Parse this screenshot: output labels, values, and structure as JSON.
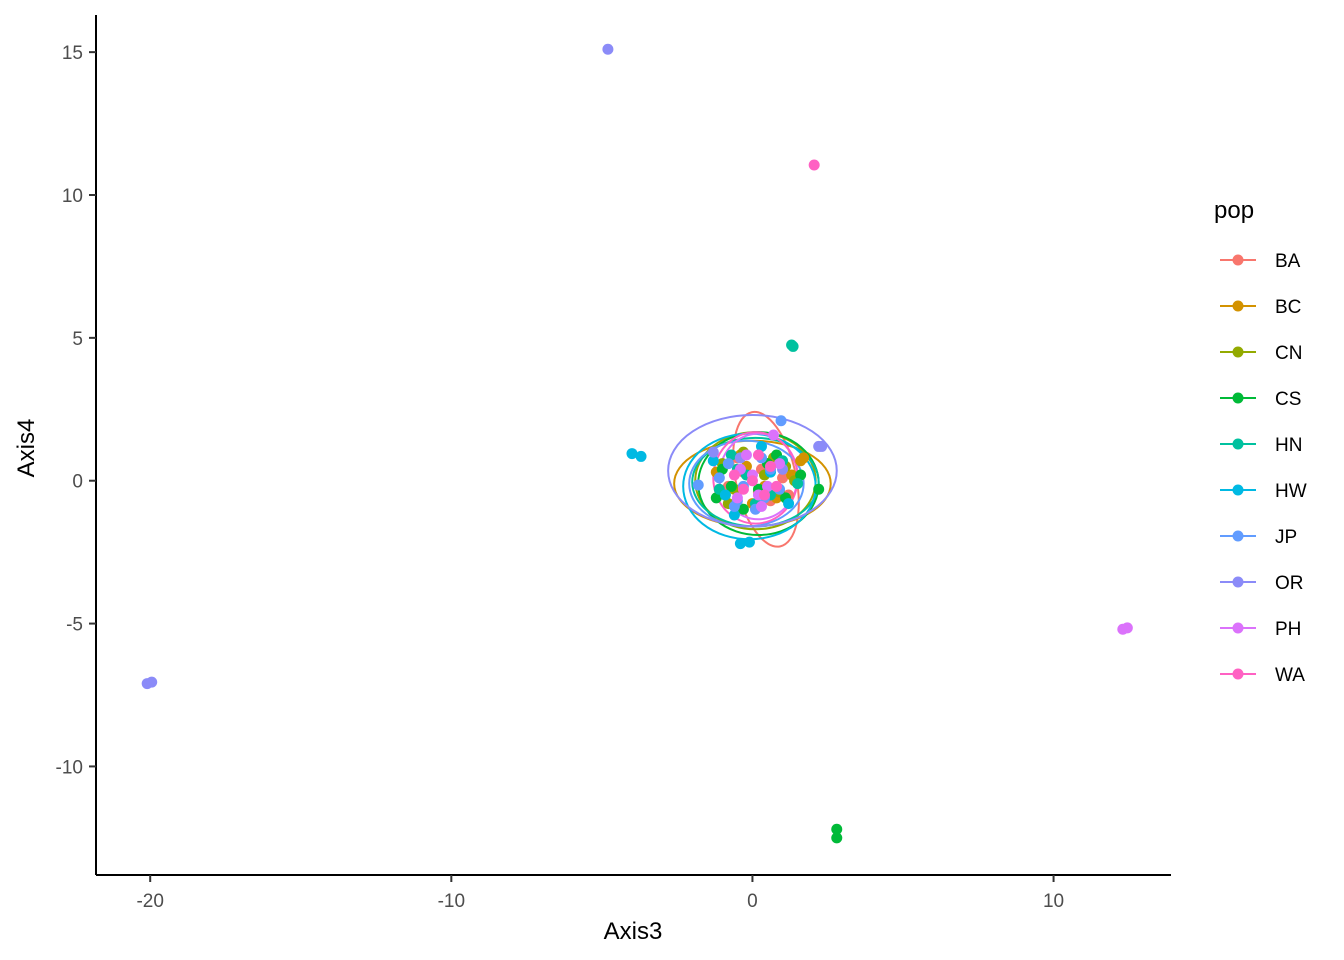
{
  "chart_data": {
    "type": "scatter",
    "title": "",
    "xlabel": "Axis3",
    "ylabel": "Axis4",
    "xlim": [
      -21.8,
      13.9
    ],
    "ylim": [
      -13.8,
      16.3
    ],
    "x_ticks": [
      -20,
      -10,
      0,
      10
    ],
    "y_ticks": [
      -10,
      -5,
      0,
      5,
      10,
      15
    ],
    "x_tick_labels": [
      "-20",
      "-10",
      "0",
      "10"
    ],
    "y_tick_labels": [
      "-10",
      "-5",
      "0",
      "5",
      "10",
      "15"
    ],
    "grid": false,
    "legend": {
      "title": "pop",
      "position": "right"
    },
    "ellipses_shown": true,
    "series": [
      {
        "name": "BA",
        "color": "#F8766D",
        "points": [
          [
            -0.3,
            0.3
          ],
          [
            0.2,
            -0.4
          ],
          [
            0.5,
            0.6
          ],
          [
            -0.8,
            -0.2
          ],
          [
            1.0,
            0.1
          ],
          [
            0.1,
            -0.9
          ],
          [
            -0.5,
            0.8
          ],
          [
            0.6,
            -0.7
          ],
          [
            1.2,
            -0.5
          ],
          [
            0.3,
            0.4
          ]
        ],
        "ellipse": {
          "center": [
            0.45,
            0.05
          ],
          "rx": 1.0,
          "ry": 2.4,
          "rotate": -12
        }
      },
      {
        "name": "BC",
        "color": "#D39200",
        "points": [
          [
            1.7,
            0.8
          ],
          [
            -1.2,
            0.3
          ],
          [
            0.8,
            -0.6
          ],
          [
            -0.4,
            0.9
          ],
          [
            1.3,
            0.2
          ],
          [
            -0.9,
            -0.5
          ],
          [
            0.4,
            -0.2
          ],
          [
            -0.2,
            0.5
          ],
          [
            1.6,
            0.7
          ],
          [
            0.0,
            -0.8
          ]
        ],
        "ellipse": {
          "center": [
            0.0,
            -0.1
          ],
          "rx": 2.6,
          "ry": 1.5,
          "rotate": 0
        }
      },
      {
        "name": "CN",
        "color": "#93AA00",
        "points": [
          [
            0.4,
            0.2
          ],
          [
            -0.6,
            -0.3
          ],
          [
            1.1,
            0.5
          ],
          [
            -1.0,
            0.6
          ],
          [
            0.2,
            -0.9
          ],
          [
            0.9,
            -0.4
          ],
          [
            -0.3,
            1.0
          ],
          [
            0.7,
            0.8
          ],
          [
            -0.8,
            -0.8
          ],
          [
            1.4,
            0.0
          ]
        ],
        "ellipse": {
          "center": [
            0.1,
            0.0
          ],
          "rx": 2.0,
          "ry": 1.7,
          "rotate": 0
        }
      },
      {
        "name": "CS",
        "color": "#00BA38",
        "points": [
          [
            2.8,
            -12.2
          ],
          [
            2.8,
            -12.5
          ],
          [
            -0.7,
            -0.2
          ],
          [
            0.5,
            0.6
          ],
          [
            1.1,
            -0.6
          ],
          [
            -1.0,
            0.4
          ],
          [
            0.2,
            -0.3
          ],
          [
            1.6,
            0.2
          ],
          [
            -0.3,
            -1.0
          ],
          [
            0.8,
            0.9
          ],
          [
            2.2,
            -0.3
          ],
          [
            -1.2,
            -0.6
          ]
        ],
        "ellipse": {
          "center": [
            0.2,
            -0.1
          ],
          "rx": 2.0,
          "ry": 1.8,
          "rotate": 0
        }
      },
      {
        "name": "HN",
        "color": "#00C19F",
        "points": [
          [
            1.3,
            4.75
          ],
          [
            1.35,
            4.7
          ],
          [
            -0.5,
            0.4
          ],
          [
            0.6,
            -0.5
          ],
          [
            -1.1,
            -0.3
          ],
          [
            1.0,
            0.7
          ],
          [
            0.1,
            -0.8
          ],
          [
            -0.7,
            0.9
          ],
          [
            1.5,
            -0.1
          ],
          [
            -0.2,
            0.2
          ]
        ],
        "ellipse": {
          "center": [
            0.1,
            -0.05
          ],
          "rx": 2.1,
          "ry": 1.55,
          "rotate": 0
        }
      },
      {
        "name": "HW",
        "color": "#00B9E3",
        "points": [
          [
            -4.0,
            0.95
          ],
          [
            -3.7,
            0.85
          ],
          [
            -0.4,
            -2.2
          ],
          [
            -0.1,
            -2.15
          ],
          [
            0.6,
            0.3
          ],
          [
            -0.9,
            -0.5
          ],
          [
            1.2,
            -0.8
          ],
          [
            -1.3,
            0.7
          ],
          [
            0.3,
            1.2
          ],
          [
            -0.6,
            -1.2
          ]
        ],
        "ellipse": {
          "center": [
            -0.1,
            -0.2
          ],
          "rx": 2.2,
          "ry": 1.85,
          "rotate": 0
        }
      },
      {
        "name": "JP",
        "color": "#619CFF",
        "points": [
          [
            0.95,
            2.1
          ],
          [
            -1.8,
            -0.15
          ],
          [
            -0.5,
            -0.7
          ],
          [
            0.3,
            0.8
          ],
          [
            -1.1,
            0.1
          ],
          [
            0.9,
            -0.3
          ],
          [
            -0.3,
            -0.2
          ],
          [
            0.1,
            -1.0
          ],
          [
            -0.8,
            0.6
          ],
          [
            0.6,
            0.4
          ],
          [
            -0.6,
            -0.9
          ],
          [
            0.4,
            -0.6
          ]
        ],
        "ellipse": {
          "center": [
            -0.2,
            -0.1
          ],
          "rx": 1.9,
          "ry": 1.5,
          "rotate": 0
        }
      },
      {
        "name": "OR",
        "color": "#8B8BF8",
        "points": [
          [
            -4.8,
            15.1
          ],
          [
            -20.1,
            -7.1
          ],
          [
            -19.95,
            -7.05
          ],
          [
            2.2,
            1.2
          ],
          [
            2.3,
            1.2
          ],
          [
            -1.3,
            1.0
          ],
          [
            1.0,
            0.4
          ],
          [
            -0.4,
            0.8
          ]
        ],
        "ellipse": {
          "center": [
            0.0,
            0.35
          ],
          "rx": 2.8,
          "ry": 1.95,
          "rotate": 0
        }
      },
      {
        "name": "PH",
        "color": "#DB72FB",
        "points": [
          [
            12.3,
            -5.2
          ],
          [
            12.45,
            -5.15
          ],
          [
            0.7,
            1.6
          ],
          [
            0.9,
            0.6
          ],
          [
            -0.4,
            0.4
          ],
          [
            0.2,
            -0.5
          ],
          [
            -0.2,
            0.9
          ],
          [
            0.5,
            -0.2
          ],
          [
            -0.5,
            -0.6
          ],
          [
            0.0,
            0.2
          ],
          [
            0.3,
            -0.9
          ]
        ],
        "ellipse": {
          "center": [
            0.2,
            0.15
          ],
          "rx": 1.3,
          "ry": 1.5,
          "rotate": 0
        }
      },
      {
        "name": "WA",
        "color": "#FF61C3",
        "points": [
          [
            2.05,
            11.05
          ],
          [
            0.6,
            0.5
          ],
          [
            -0.3,
            -0.3
          ],
          [
            0.2,
            0.9
          ],
          [
            -0.6,
            0.2
          ],
          [
            0.4,
            -0.5
          ],
          [
            0.0,
            0.0
          ],
          [
            0.8,
            -0.2
          ]
        ],
        "ellipse": {
          "center": [
            0.1,
            0.1
          ],
          "rx": 1.4,
          "ry": 1.6,
          "rotate": 0
        }
      }
    ]
  }
}
